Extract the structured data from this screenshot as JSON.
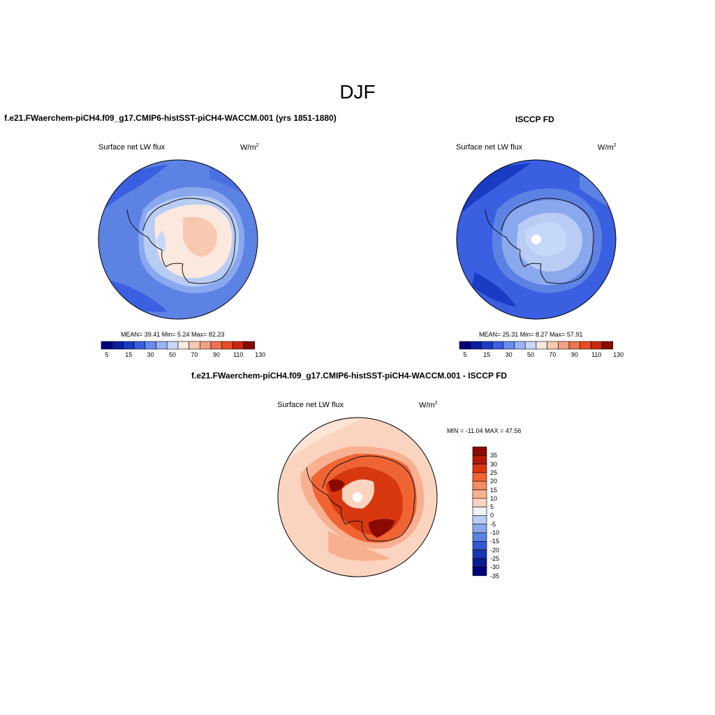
{
  "figure": {
    "main_title": "DJF"
  },
  "panels": [
    {
      "id": "model",
      "title": "f.e21.FWaerchem-piCH4.f09_g17.CMIP6-histSST-piCH4-WACCM.001 (yrs 1851-1880)",
      "variable": "Surface net LW flux",
      "units": "W/m",
      "units_exp": "2",
      "stats": "MEAN=  39.41  Min=   5.24  Max=  82.23",
      "colorbar_labels": [
        "5",
        "15",
        "30",
        "50",
        "70",
        "90",
        "110",
        "130"
      ]
    },
    {
      "id": "obs",
      "title": "ISCCP FD",
      "variable": "Surface net LW flux",
      "units": "W/m",
      "units_exp": "2",
      "stats": "MEAN=  25.31  Min=   8.27  Max=  57.91",
      "colorbar_labels": [
        "5",
        "15",
        "30",
        "50",
        "70",
        "90",
        "110",
        "130"
      ]
    },
    {
      "id": "diff",
      "title": "f.e21.FWaerchem-piCH4.f09_g17.CMIP6-histSST-piCH4-WACCM.001 - ISCCP FD",
      "variable": "Surface net LW flux",
      "units": "W/m",
      "units_exp": "2",
      "stats": "MIN = -11.04 MAX =  47.56",
      "colorbar_labels": [
        "35",
        "30",
        "25",
        "20",
        "15",
        "10",
        "5",
        "0",
        "-5",
        "-10",
        "-15",
        "-20",
        "-25",
        "-30",
        "-35"
      ]
    }
  ],
  "colors": {
    "abs_scale": [
      "#00007f",
      "#0a1fa0",
      "#1a3cc4",
      "#3a5fe0",
      "#6a8cf0",
      "#98b4f6",
      "#c6d8fa",
      "#fbe8de",
      "#f8c8b0",
      "#f2a282",
      "#f07350",
      "#e84a26",
      "#c8280e",
      "#8a0a00"
    ],
    "diff_scale": [
      "#8a0a00",
      "#b01a04",
      "#d83810",
      "#f06434",
      "#f48c62",
      "#f8b090",
      "#fbd4c0",
      "#eef2fa",
      "#b8ccf4",
      "#8aa8ee",
      "#5c82e4",
      "#3458d0",
      "#1a36b4",
      "#0a1c94",
      "#00007a"
    ]
  }
}
